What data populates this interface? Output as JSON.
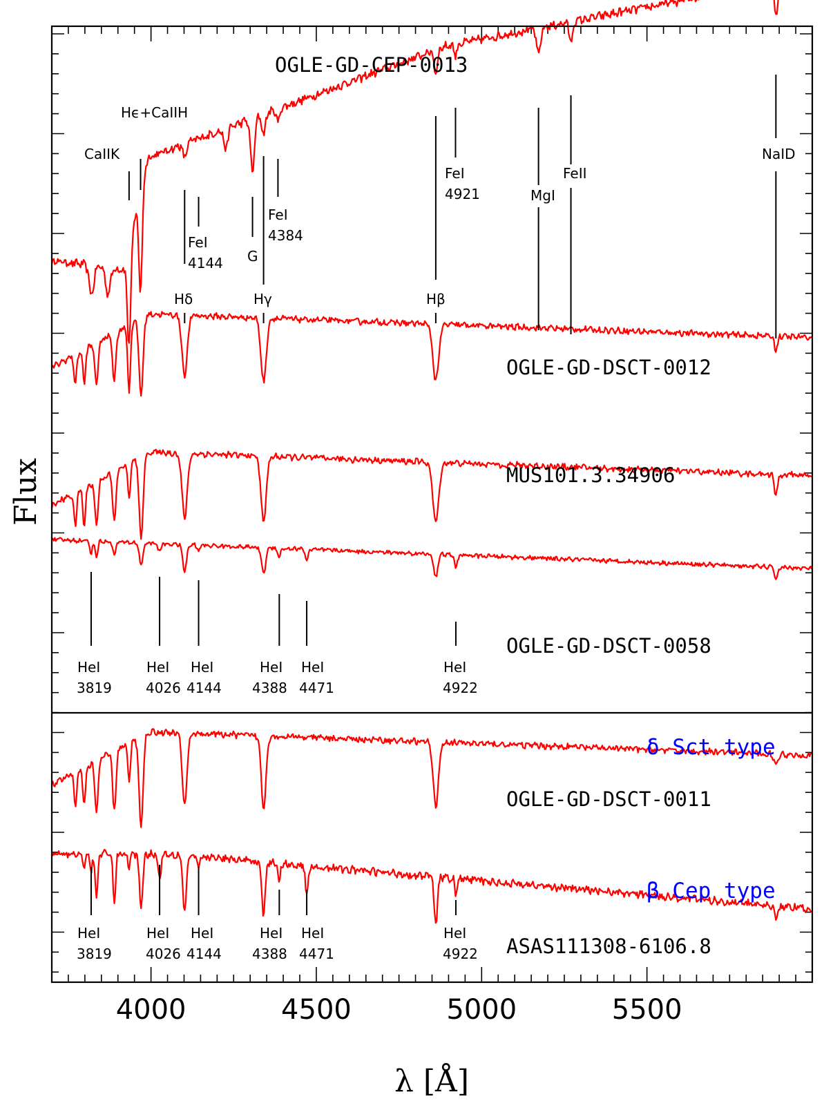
{
  "chart_data": {
    "type": "line",
    "xlabel": "λ [Å]",
    "ylabel": "Flux",
    "xlim": [
      3700,
      6000
    ],
    "x_ticks": [
      4000,
      4500,
      5000,
      5500
    ],
    "grid": false,
    "spectra": [
      {
        "name": "OGLE-GD-CEP-0013",
        "kind": "cool",
        "absorption": [
          [
            3820,
            0.5,
            7
          ],
          [
            3870,
            0.45,
            7
          ],
          [
            3933.7,
            1.7,
            5
          ],
          [
            3968.5,
            1.7,
            5
          ],
          [
            4101.7,
            0.25,
            5
          ],
          [
            4226,
            0.35,
            6
          ],
          [
            4307,
            0.9,
            6
          ],
          [
            4340.5,
            0.35,
            5
          ],
          [
            4384,
            0.25,
            4
          ],
          [
            4861.3,
            0.4,
            5
          ],
          [
            4921,
            0.2,
            4
          ],
          [
            5172,
            0.45,
            6
          ],
          [
            5270,
            0.35,
            5
          ],
          [
            5890,
            0.55,
            6
          ]
        ]
      },
      {
        "name": "OGLE-GD-DSCT-0012",
        "kind": "A",
        "absorption": [
          [
            3771,
            0.7,
            4
          ],
          [
            3798,
            0.8,
            4
          ],
          [
            3835,
            0.95,
            5
          ],
          [
            3889,
            1.1,
            5
          ],
          [
            3933.7,
            1.6,
            4
          ],
          [
            3970,
            1.8,
            6
          ],
          [
            4101.7,
            1.4,
            8
          ],
          [
            4340.5,
            1.5,
            8
          ],
          [
            4861.3,
            1.3,
            9
          ],
          [
            5890,
            0.3,
            5
          ]
        ]
      },
      {
        "name": "MUS101.3.34906",
        "kind": "A",
        "absorption": [
          [
            3771,
            0.8,
            4
          ],
          [
            3798,
            0.9,
            4
          ],
          [
            3835,
            1.0,
            5
          ],
          [
            3889,
            1.2,
            5
          ],
          [
            3933.7,
            0.8,
            4
          ],
          [
            3970,
            1.9,
            6
          ],
          [
            4101.7,
            1.5,
            8
          ],
          [
            4340.5,
            1.5,
            8
          ],
          [
            4861.3,
            1.4,
            9
          ],
          [
            5890,
            0.5,
            5
          ]
        ]
      },
      {
        "name": "OGLE-GD-DSCT-0058",
        "kind": "B",
        "absorption": [
          [
            3819,
            0.4,
            4
          ],
          [
            3835,
            0.5,
            4
          ],
          [
            3889,
            0.5,
            4
          ],
          [
            3970,
            0.8,
            5
          ],
          [
            4026,
            0.3,
            4
          ],
          [
            4101.7,
            0.9,
            6
          ],
          [
            4144,
            0.2,
            4
          ],
          [
            4340.5,
            0.9,
            6
          ],
          [
            4388,
            0.3,
            4
          ],
          [
            4471,
            0.4,
            4
          ],
          [
            4861.3,
            0.8,
            6
          ],
          [
            4922,
            0.5,
            4
          ],
          [
            5890,
            0.4,
            5
          ]
        ]
      },
      {
        "name": "OGLE-GD-DSCT-0011",
        "kind": "A",
        "absorption": [
          [
            3771,
            0.8,
            4
          ],
          [
            3798,
            0.9,
            4
          ],
          [
            3835,
            1.2,
            5
          ],
          [
            3889,
            1.4,
            5
          ],
          [
            3933.7,
            0.9,
            4
          ],
          [
            3970,
            2.1,
            6
          ],
          [
            4101.7,
            1.7,
            7
          ],
          [
            4340.5,
            1.7,
            7
          ],
          [
            4861.3,
            1.5,
            8
          ],
          [
            5890,
            0.3,
            5
          ]
        ]
      },
      {
        "name": "ASAS111308-6106.8",
        "kind": "Bhot",
        "absorption": [
          [
            3798,
            0.3,
            3
          ],
          [
            3819,
            0.4,
            3
          ],
          [
            3835,
            0.8,
            4
          ],
          [
            3889,
            0.9,
            4
          ],
          [
            3933.7,
            0.3,
            3
          ],
          [
            3970,
            1.0,
            5
          ],
          [
            4026,
            0.5,
            4
          ],
          [
            4101.7,
            1.1,
            5
          ],
          [
            4144,
            0.3,
            3
          ],
          [
            4340.5,
            1.0,
            5
          ],
          [
            4388,
            0.4,
            3
          ],
          [
            4471,
            0.6,
            4
          ],
          [
            4861.3,
            0.9,
            5
          ],
          [
            4922,
            0.35,
            3
          ],
          [
            5890,
            0.3,
            4
          ]
        ]
      }
    ],
    "line_ids": [
      {
        "label": "CaIIK"
      },
      {
        "label": "Hϵ+CaIIH"
      },
      {
        "label": "FeI",
        "label2": "4144"
      },
      {
        "label": "G"
      },
      {
        "label": "FeI",
        "label2": "4384"
      },
      {
        "label": "FeI",
        "label2": "4921"
      },
      {
        "label": "MgI"
      },
      {
        "label": "FeII"
      },
      {
        "label": "NaID"
      },
      {
        "label": "Hδ"
      },
      {
        "label": "Hγ"
      },
      {
        "label": "Hβ"
      }
    ],
    "hei_labels": [
      {
        "label": "HeI",
        "label2": "3819"
      },
      {
        "label": "HeI",
        "label2": "4026"
      },
      {
        "label": "HeI",
        "label2": "4144"
      },
      {
        "label": "HeI",
        "label2": "4388"
      },
      {
        "label": "HeI",
        "label2": "4471"
      },
      {
        "label": "HeI",
        "label2": "4922"
      }
    ],
    "type_labels": [
      "δ Sct type",
      "β Cep type"
    ]
  }
}
